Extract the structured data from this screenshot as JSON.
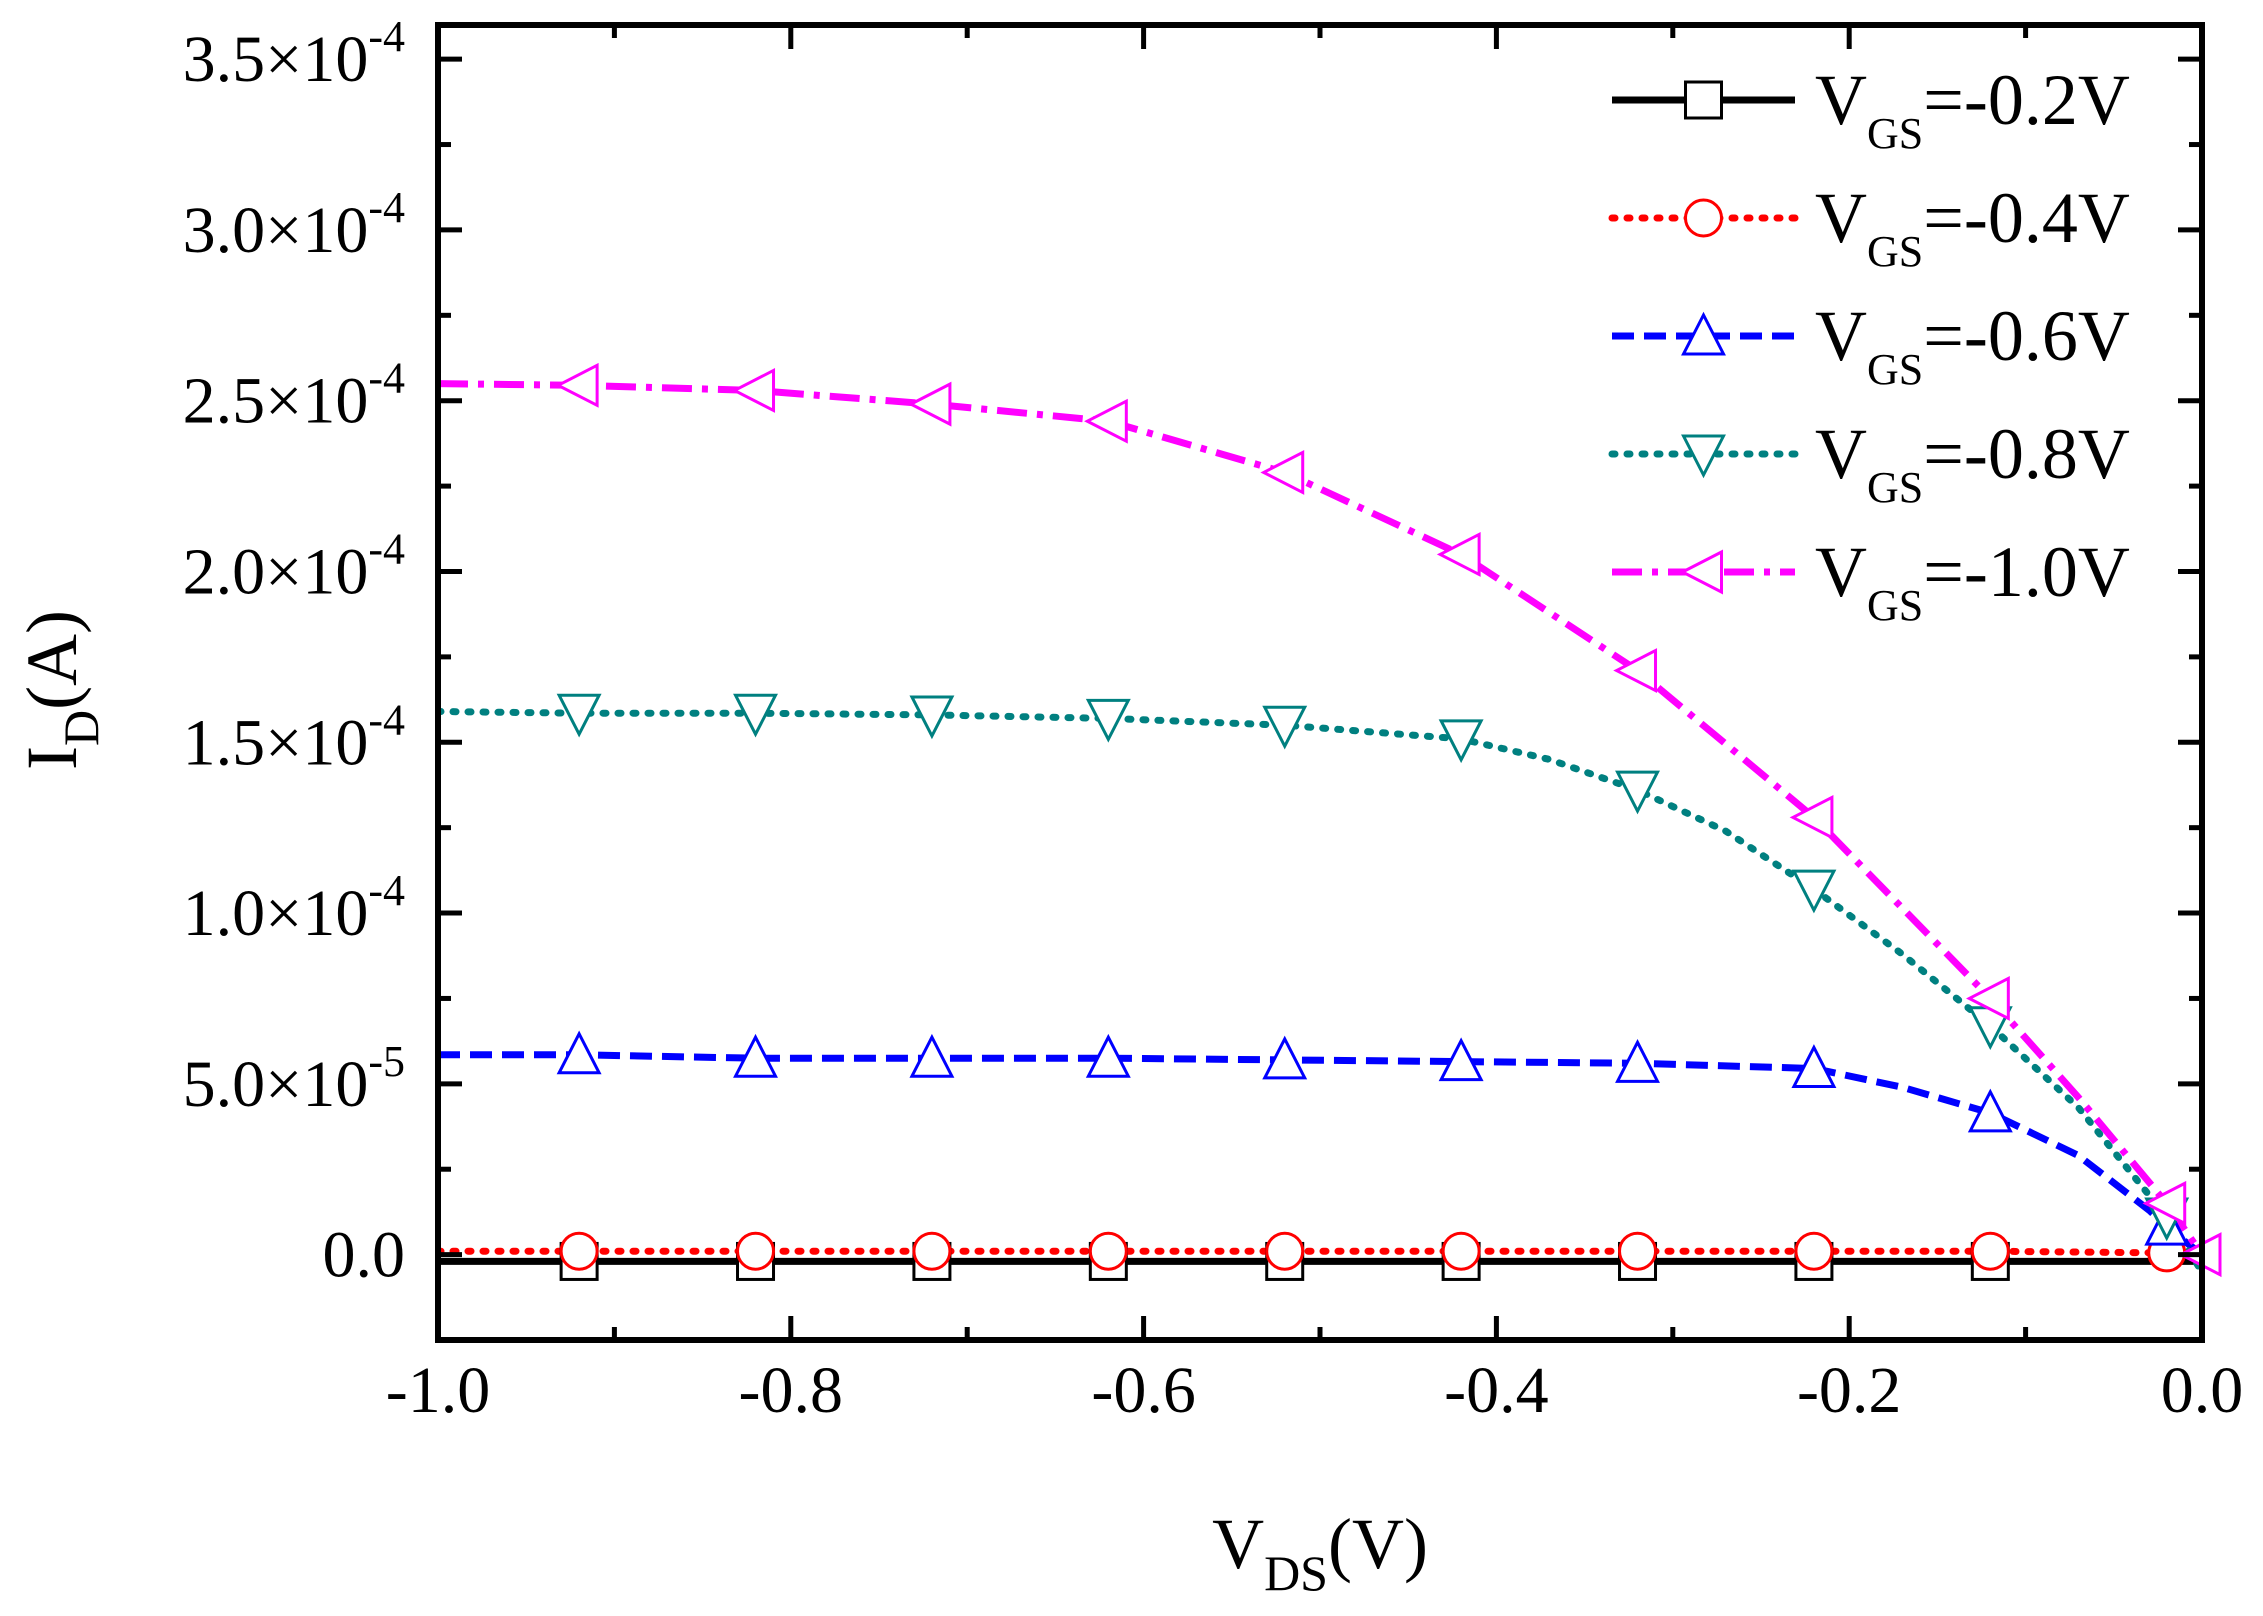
{
  "chart_data": {
    "type": "line",
    "title": "",
    "xlabel": {
      "main": "V",
      "sub": "DS",
      "unit": "(V)"
    },
    "ylabel": {
      "main": "I",
      "sub": "D",
      "unit": "(A)"
    },
    "xlim": [
      -1.0,
      0.0
    ],
    "ylim": [
      -2.5e-05,
      0.00036
    ],
    "xticks": [
      {
        "value": -1.0,
        "label": "-1.0"
      },
      {
        "value": -0.8,
        "label": "-0.8"
      },
      {
        "value": -0.6,
        "label": "-0.6"
      },
      {
        "value": -0.4,
        "label": "-0.4"
      },
      {
        "value": -0.2,
        "label": "-0.2"
      },
      {
        "value": 0.0,
        "label": "0.0"
      }
    ],
    "yticks": [
      {
        "value": 0.0,
        "label": "0.0",
        "exp": ""
      },
      {
        "value": 5e-05,
        "label": "5.0×10",
        "exp": "-5"
      },
      {
        "value": 0.0001,
        "label": "1.0×10",
        "exp": "-4"
      },
      {
        "value": 0.00015,
        "label": "1.5×10",
        "exp": "-4"
      },
      {
        "value": 0.0002,
        "label": "2.0×10",
        "exp": "-4"
      },
      {
        "value": 0.00025,
        "label": "2.5×10",
        "exp": "-4"
      },
      {
        "value": 0.0003,
        "label": "3.0×10",
        "exp": "-4"
      },
      {
        "value": 0.00035,
        "label": "3.5×10",
        "exp": "-4"
      }
    ],
    "grid": false,
    "legend_position": "top-right",
    "series": [
      {
        "name": "V_GS=-0.2V",
        "legend": {
          "main": "V",
          "sub": "GS",
          "rest": "=-0.2V"
        },
        "color": "#000000",
        "marker": "square",
        "dash": "solid",
        "points": [
          [
            -1.0,
            -2e-06
          ],
          [
            -0.92,
            -2e-06
          ],
          [
            -0.82,
            -2e-06
          ],
          [
            -0.72,
            -2e-06
          ],
          [
            -0.62,
            -2e-06
          ],
          [
            -0.52,
            -2e-06
          ],
          [
            -0.42,
            -2e-06
          ],
          [
            -0.32,
            -2e-06
          ],
          [
            -0.22,
            -2e-06
          ],
          [
            -0.12,
            -2e-06
          ],
          [
            -0.02,
            -2e-06
          ],
          [
            0.0,
            -2e-06
          ]
        ],
        "marker_x": [
          -0.92,
          -0.82,
          -0.72,
          -0.62,
          -0.52,
          -0.42,
          -0.32,
          -0.22,
          -0.12
        ]
      },
      {
        "name": "V_GS=-0.4V",
        "legend": {
          "main": "V",
          "sub": "GS",
          "rest": "=-0.4V"
        },
        "color": "#ff0000",
        "marker": "circle",
        "dash": "dotted",
        "points": [
          [
            -1.0,
            1e-06
          ],
          [
            -0.92,
            1e-06
          ],
          [
            -0.82,
            1e-06
          ],
          [
            -0.72,
            1e-06
          ],
          [
            -0.62,
            1e-06
          ],
          [
            -0.52,
            1e-06
          ],
          [
            -0.42,
            1e-06
          ],
          [
            -0.32,
            1e-06
          ],
          [
            -0.22,
            1e-06
          ],
          [
            -0.12,
            1e-06
          ],
          [
            -0.02,
            5e-07
          ],
          [
            0.0,
            0.0
          ]
        ],
        "marker_x": [
          -0.92,
          -0.82,
          -0.72,
          -0.62,
          -0.52,
          -0.42,
          -0.32,
          -0.22,
          -0.12,
          -0.02
        ]
      },
      {
        "name": "V_GS=-0.6V",
        "legend": {
          "main": "V",
          "sub": "GS",
          "rest": "=-0.6V"
        },
        "color": "#0000ff",
        "marker": "triangle-up",
        "dash": "dashed",
        "points": [
          [
            -1.0,
            5.85e-05
          ],
          [
            -0.92,
            5.85e-05
          ],
          [
            -0.82,
            5.75e-05
          ],
          [
            -0.72,
            5.75e-05
          ],
          [
            -0.62,
            5.75e-05
          ],
          [
            -0.52,
            5.7e-05
          ],
          [
            -0.42,
            5.65e-05
          ],
          [
            -0.32,
            5.6e-05
          ],
          [
            -0.22,
            5.45e-05
          ],
          [
            -0.17,
            4.9e-05
          ],
          [
            -0.12,
            4.15e-05
          ],
          [
            -0.07,
            2.9e-05
          ],
          [
            -0.03,
            1.3e-05
          ],
          [
            -0.015,
            6e-06
          ],
          [
            0.0,
            0.0
          ]
        ],
        "marker_x": [
          -0.92,
          -0.82,
          -0.72,
          -0.62,
          -0.52,
          -0.42,
          -0.32,
          -0.22,
          -0.12,
          -0.02
        ]
      },
      {
        "name": "V_GS=-0.8V",
        "legend": {
          "main": "V",
          "sub": "GS",
          "rest": "=-0.8V"
        },
        "color": "#008080",
        "marker": "triangle-down",
        "dash": "dotted",
        "points": [
          [
            -1.0,
            0.000159
          ],
          [
            -0.92,
            0.0001585
          ],
          [
            -0.82,
            0.0001585
          ],
          [
            -0.72,
            0.000158
          ],
          [
            -0.62,
            0.000157
          ],
          [
            -0.52,
            0.000155
          ],
          [
            -0.42,
            0.000151
          ],
          [
            -0.37,
            0.000145
          ],
          [
            -0.32,
            0.000136
          ],
          [
            -0.27,
            0.000124
          ],
          [
            -0.22,
            0.000107
          ],
          [
            -0.17,
            8.8e-05
          ],
          [
            -0.12,
            6.7e-05
          ],
          [
            -0.07,
            4.3e-05
          ],
          [
            -0.02,
            1.1e-05
          ],
          [
            0.0,
            -5e-06
          ]
        ],
        "marker_x": [
          -0.92,
          -0.82,
          -0.72,
          -0.62,
          -0.52,
          -0.42,
          -0.32,
          -0.22,
          -0.12,
          -0.02
        ]
      },
      {
        "name": "V_GS=-1.0V",
        "legend": {
          "main": "V",
          "sub": "GS",
          "rest": "=-1.0V"
        },
        "color": "#ff00ff",
        "marker": "triangle-left",
        "dash": "dashdot",
        "points": [
          [
            -1.0,
            0.000255
          ],
          [
            -0.92,
            0.0002545
          ],
          [
            -0.82,
            0.000253
          ],
          [
            -0.72,
            0.000249
          ],
          [
            -0.62,
            0.000244
          ],
          [
            -0.52,
            0.000229
          ],
          [
            -0.42,
            0.000205
          ],
          [
            -0.32,
            0.000171
          ],
          [
            -0.22,
            0.000128
          ],
          [
            -0.12,
            7.5e-05
          ],
          [
            -0.07,
            4.6e-05
          ],
          [
            -0.02,
            1.5e-05
          ],
          [
            0.0,
            0.0
          ]
        ],
        "marker_x": [
          -0.92,
          -0.82,
          -0.72,
          -0.62,
          -0.52,
          -0.42,
          -0.32,
          -0.22,
          -0.12,
          -0.02,
          0.0
        ]
      }
    ]
  }
}
